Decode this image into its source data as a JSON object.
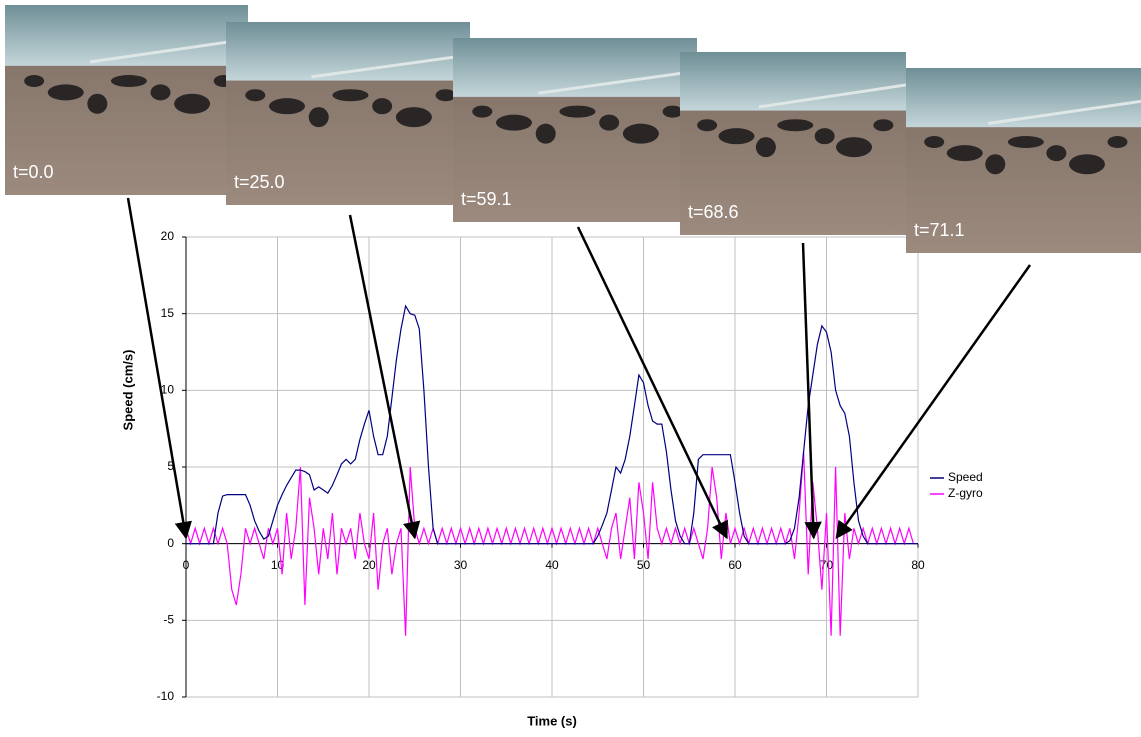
{
  "chart_data": {
    "type": "line",
    "x_label": "Time (s)",
    "y_label": "Speed (cm/s)",
    "xlim": [
      0,
      80
    ],
    "xticks": [
      0,
      10,
      20,
      30,
      40,
      50,
      60,
      70,
      80
    ],
    "ylim": [
      -10,
      20
    ],
    "yticks": [
      -10,
      -5,
      0,
      5,
      10,
      15,
      20
    ],
    "grid": true,
    "legend": "right",
    "x": [
      0,
      0.5,
      1,
      1.5,
      2,
      2.5,
      3,
      3.5,
      4,
      4.5,
      5,
      5.5,
      6,
      6.5,
      7,
      7.5,
      8,
      8.5,
      9,
      9.5,
      10,
      10.5,
      11,
      11.5,
      12,
      12.5,
      13,
      13.5,
      14,
      14.5,
      15,
      15.5,
      16,
      16.5,
      17,
      17.5,
      18,
      18.5,
      19,
      19.5,
      20,
      20.5,
      21,
      21.5,
      22,
      22.5,
      23,
      23.5,
      24,
      24.5,
      25,
      25.5,
      26,
      26.5,
      27,
      27.5,
      28,
      28.5,
      29,
      29.5,
      30,
      30.5,
      31,
      31.5,
      32,
      32.5,
      33,
      33.5,
      34,
      34.5,
      35,
      35.5,
      36,
      36.5,
      37,
      37.5,
      38,
      38.5,
      39,
      39.5,
      40,
      40.5,
      41,
      41.5,
      42,
      42.5,
      43,
      43.5,
      44,
      44.5,
      45,
      45.5,
      46,
      46.5,
      47,
      47.5,
      48,
      48.5,
      49,
      49.5,
      50,
      50.5,
      51,
      51.5,
      52,
      52.5,
      53,
      53.5,
      54,
      54.5,
      55,
      55.5,
      56,
      56.5,
      57,
      57.5,
      58,
      58.5,
      59,
      59.5,
      60,
      60.5,
      61,
      61.5,
      62,
      62.5,
      63,
      63.5,
      64,
      64.5,
      65,
      65.5,
      66,
      66.5,
      67,
      67.5,
      68,
      68.5,
      69,
      69.5,
      70,
      70.5,
      71,
      71.5,
      72,
      72.5,
      73,
      73.5,
      74,
      74.5,
      75,
      75.5,
      76,
      76.5,
      77,
      77.5,
      78,
      78.5,
      79,
      79.5,
      80
    ],
    "series": [
      {
        "name": "Speed",
        "color": "#000080",
        "values": [
          0,
          0,
          0,
          0,
          0,
          0,
          0,
          2,
          3.1,
          3.2,
          3.2,
          3.2,
          3.2,
          3.2,
          2.5,
          1.5,
          0.8,
          0.3,
          0.5,
          1.5,
          2.5,
          3.2,
          3.8,
          4.3,
          4.8,
          4.8,
          4.7,
          4.5,
          3.5,
          3.7,
          3.5,
          3.3,
          3.8,
          4.5,
          5.2,
          5.5,
          5.2,
          5.5,
          6.8,
          7.8,
          8.7,
          7,
          5.8,
          5.8,
          7,
          9.5,
          12,
          14,
          15.5,
          15,
          14.9,
          14,
          10,
          5,
          1,
          0,
          0,
          0,
          0,
          0,
          0,
          0,
          0,
          0,
          0,
          0,
          0,
          0,
          0,
          0,
          0,
          0,
          0,
          0,
          0,
          0,
          0,
          0,
          0,
          0,
          0,
          0,
          0,
          0,
          0,
          0,
          0,
          0,
          0,
          0,
          0.5,
          1.2,
          2,
          3.5,
          5,
          4.6,
          5.5,
          7,
          9,
          11,
          10.5,
          9,
          8,
          7.8,
          7.8,
          6,
          3.5,
          1.5,
          0.5,
          0,
          0,
          2,
          5.5,
          5.8,
          5.8,
          5.8,
          5.8,
          5.8,
          5.8,
          5.8,
          4,
          2,
          0.5,
          0,
          0,
          0,
          0,
          0,
          0,
          0,
          0,
          0,
          0.2,
          1,
          3,
          6,
          9,
          11,
          13,
          14.2,
          13.8,
          12.5,
          10,
          9,
          8.5,
          7,
          4,
          1.5,
          0.5,
          0,
          0,
          0,
          0,
          0,
          0,
          0,
          0,
          0,
          0,
          0,
          0
        ]
      },
      {
        "name": "Z-gyro",
        "color": "#ff00ff",
        "values": [
          1,
          0,
          1,
          0,
          1,
          0,
          1,
          0,
          1,
          0,
          -3,
          -4,
          -2,
          1,
          0,
          1,
          0,
          -1,
          1,
          0,
          1,
          -2,
          2,
          -1,
          1,
          5,
          -4,
          3,
          1,
          -2,
          1,
          -1,
          2,
          -2,
          1,
          0,
          1,
          -1,
          2,
          0,
          -1,
          2,
          -3,
          0,
          1,
          -2,
          0,
          1,
          -6,
          5,
          1,
          0,
          1,
          0,
          1,
          0,
          1,
          0,
          1,
          0,
          1,
          0,
          1,
          0,
          1,
          0,
          1,
          0,
          1,
          0,
          1,
          0,
          1,
          0,
          1,
          0,
          1,
          0,
          1,
          0,
          1,
          0,
          1,
          0,
          1,
          0,
          1,
          0,
          1,
          0,
          1,
          0,
          -1,
          1,
          2,
          -1,
          1,
          3,
          -1,
          4,
          2,
          -1,
          4,
          1,
          0,
          1,
          0,
          1,
          0,
          1,
          0,
          1,
          0,
          -1,
          1,
          5,
          3,
          -1,
          2,
          0,
          1,
          0,
          1,
          0,
          1,
          0,
          1,
          0,
          1,
          0,
          1,
          0,
          1,
          -1,
          2,
          6,
          -2,
          4,
          1,
          -3,
          2,
          -6,
          5,
          -6,
          2,
          -1,
          1,
          0,
          1,
          0,
          1,
          0,
          1,
          0,
          1,
          0,
          1,
          0,
          1,
          0,
          0
        ]
      }
    ],
    "annotations": [
      {
        "text": "t=0.0",
        "x": 0
      },
      {
        "text": "t=25.0",
        "x": 25
      },
      {
        "text": "t=59.1",
        "x": 59.1
      },
      {
        "text": "t=68.6",
        "x": 68.6
      },
      {
        "text": "t=71.1",
        "x": 71.1
      }
    ]
  }
}
